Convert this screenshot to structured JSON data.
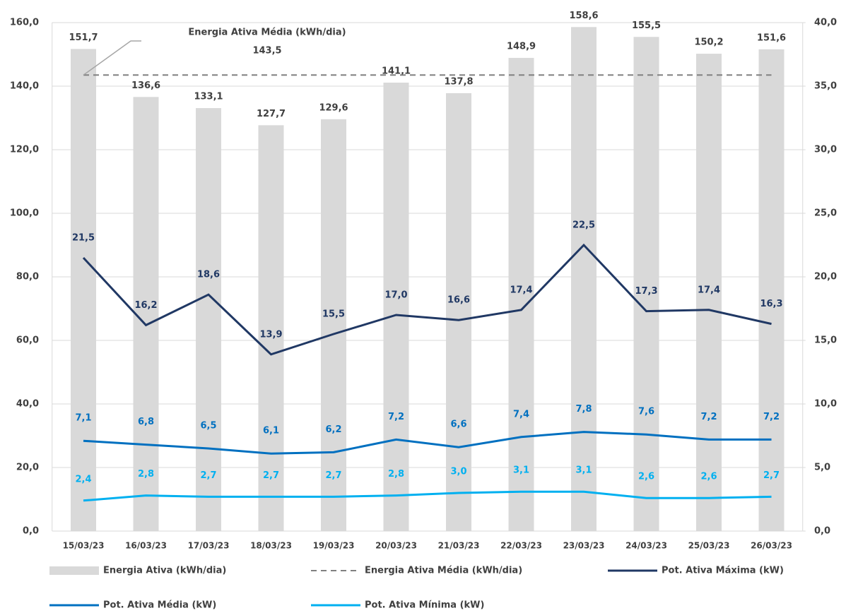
{
  "chart_data": {
    "type": "combo",
    "categories": [
      "15/03/23",
      "16/03/23",
      "17/03/23",
      "18/03/23",
      "19/03/23",
      "20/03/23",
      "21/03/23",
      "22/03/23",
      "23/03/23",
      "24/03/23",
      "25/03/23",
      "26/03/23"
    ],
    "ylim": [
      0,
      160
    ],
    "yticks": [
      {
        "value": 0,
        "label": "0,0"
      },
      {
        "value": 20,
        "label": "20,0"
      },
      {
        "value": 40,
        "label": "40,0"
      },
      {
        "value": 60,
        "label": "60,0"
      },
      {
        "value": 80,
        "label": "80,0"
      },
      {
        "value": 100,
        "label": "100,0"
      },
      {
        "value": 120,
        "label": "120,0"
      },
      {
        "value": 140,
        "label": "140,0"
      },
      {
        "value": 160,
        "label": "160,0"
      }
    ],
    "y2lim": [
      0,
      40
    ],
    "y2ticks": [
      {
        "value": 0,
        "label": "0,0"
      },
      {
        "value": 5,
        "label": "5,0"
      },
      {
        "value": 10,
        "label": "10,0"
      },
      {
        "value": 15,
        "label": "15,0"
      },
      {
        "value": 20,
        "label": "20,0"
      },
      {
        "value": 25,
        "label": "25,0"
      },
      {
        "value": 30,
        "label": "30,0"
      },
      {
        "value": 35,
        "label": "35,0"
      },
      {
        "value": 40,
        "label": "40,0"
      }
    ],
    "annotation": "Energia Ativa Média (kWh/dia)",
    "series": [
      {
        "name": "Energia Ativa (kWh/dia)",
        "kind": "bar",
        "color": "#d9d9d9",
        "values": [
          151.7,
          136.6,
          133.1,
          127.7,
          129.6,
          141.1,
          137.8,
          148.9,
          158.6,
          155.5,
          150.2,
          151.6
        ],
        "value_labels": [
          "151,7",
          "136,6",
          "133,1",
          "127,7",
          "129,6",
          "141,1",
          "137,8",
          "148,9",
          "158,6",
          "155,5",
          "150,2",
          "151,6"
        ]
      },
      {
        "name": "Energia Ativa Média (kWh/dia)",
        "kind": "reference",
        "color": "#808080",
        "value": 143.5,
        "value_label": "143,5"
      },
      {
        "name": "Pot. Ativa Máxima (kW)",
        "kind": "line",
        "axis": "y2",
        "color": "#203864",
        "values": [
          21.5,
          16.2,
          18.6,
          13.9,
          15.5,
          17.0,
          16.6,
          17.4,
          22.5,
          17.3,
          17.4,
          16.3
        ],
        "value_labels": [
          "21,5",
          "16,2",
          "18,6",
          "13,9",
          "15,5",
          "17,0",
          "16,6",
          "17,4",
          "22,5",
          "17,3",
          "17,4",
          "16,3"
        ]
      },
      {
        "name": "Pot. Ativa Média (kW)",
        "kind": "line",
        "axis": "y2",
        "color": "#0070c0",
        "values": [
          7.1,
          6.8,
          6.5,
          6.1,
          6.2,
          7.2,
          6.6,
          7.4,
          7.8,
          7.6,
          7.2,
          7.2
        ],
        "value_labels": [
          "7,1",
          "6,8",
          "6,5",
          "6,1",
          "6,2",
          "7,2",
          "6,6",
          "7,4",
          "7,8",
          "7,6",
          "7,2",
          "7,2"
        ]
      },
      {
        "name": "Pot. Ativa Mínima (kW)",
        "kind": "line",
        "axis": "y2",
        "color": "#00b0f0",
        "values": [
          2.4,
          2.8,
          2.7,
          2.7,
          2.7,
          2.8,
          3.0,
          3.1,
          3.1,
          2.6,
          2.6,
          2.7
        ],
        "value_labels": [
          "2,4",
          "2,8",
          "2,7",
          "2,7",
          "2,7",
          "2,8",
          "3,0",
          "3,1",
          "3,1",
          "2,6",
          "2,6",
          "2,7"
        ]
      }
    ]
  }
}
